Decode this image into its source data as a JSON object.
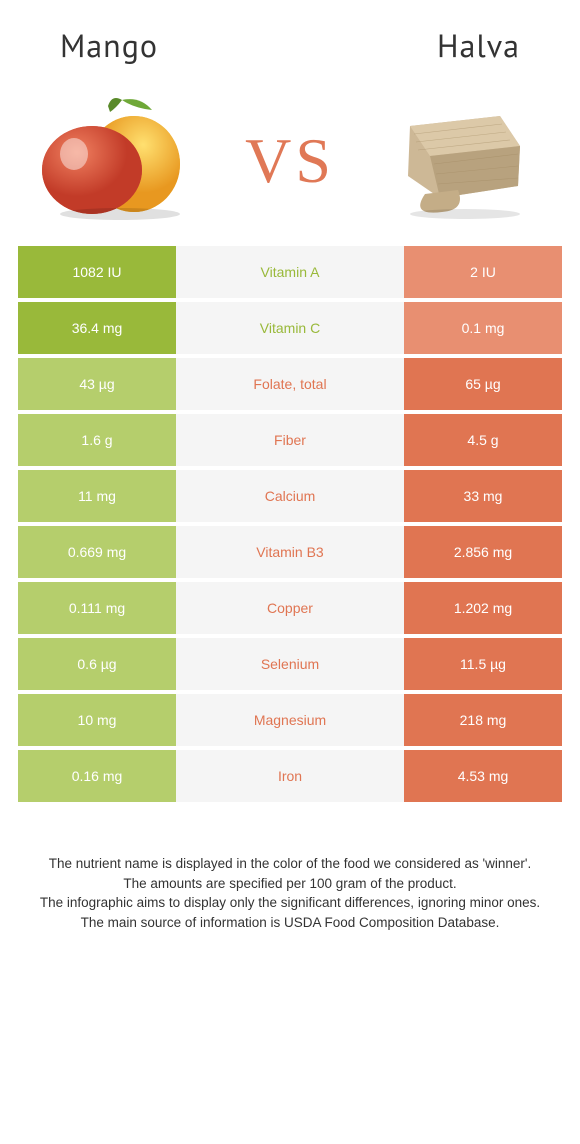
{
  "foods": {
    "left": {
      "title": "Mango"
    },
    "right": {
      "title": "Halva"
    }
  },
  "vs_text": "VS",
  "colors": {
    "left_win": "#99b93a",
    "left_lose": "#b5ce6c",
    "right_win": "#e07552",
    "right_lose": "#e88f71",
    "mid_bg": "#f5f5f5"
  },
  "rows": [
    {
      "nutrient": "Vitamin A",
      "left": "1082 IU",
      "right": "2 IU",
      "winner": "left"
    },
    {
      "nutrient": "Vitamin C",
      "left": "36.4 mg",
      "right": "0.1 mg",
      "winner": "left"
    },
    {
      "nutrient": "Folate, total",
      "left": "43 µg",
      "right": "65 µg",
      "winner": "right"
    },
    {
      "nutrient": "Fiber",
      "left": "1.6 g",
      "right": "4.5 g",
      "winner": "right"
    },
    {
      "nutrient": "Calcium",
      "left": "11 mg",
      "right": "33 mg",
      "winner": "right"
    },
    {
      "nutrient": "Vitamin B3",
      "left": "0.669 mg",
      "right": "2.856 mg",
      "winner": "right"
    },
    {
      "nutrient": "Copper",
      "left": "0.111 mg",
      "right": "1.202 mg",
      "winner": "right"
    },
    {
      "nutrient": "Selenium",
      "left": "0.6 µg",
      "right": "11.5 µg",
      "winner": "right"
    },
    {
      "nutrient": "Magnesium",
      "left": "10 mg",
      "right": "218 mg",
      "winner": "right"
    },
    {
      "nutrient": "Iron",
      "left": "0.16 mg",
      "right": "4.53 mg",
      "winner": "right"
    }
  ],
  "footer_lines": [
    "The nutrient name is displayed in the color of the food we considered as 'winner'.",
    "The amounts are specified per 100 gram of the product.",
    "The infographic aims to display only the significant differences, ignoring minor ones.",
    "The main source of information is USDA Food Composition Database."
  ]
}
